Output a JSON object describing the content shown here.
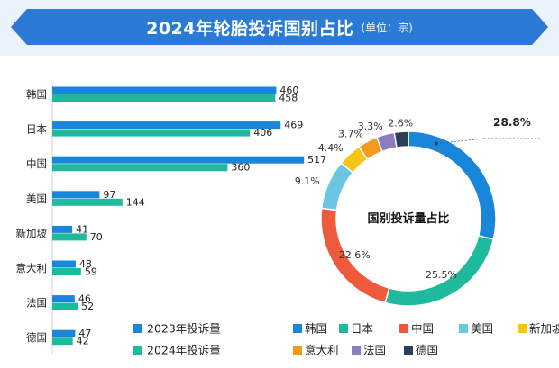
{
  "header": {
    "title": "2024年轮胎投诉国别占比",
    "unit": "(单位：宗)"
  },
  "chart_data": [
    {
      "type": "bar",
      "orientation": "horizontal",
      "categories": [
        "韩国",
        "日本",
        "中国",
        "美国",
        "新加坡",
        "意大利",
        "法国",
        "德国"
      ],
      "series": [
        {
          "name": "2023年投诉量",
          "color": "#1a86d9",
          "values": [
            460,
            469,
            517,
            97,
            41,
            48,
            46,
            47
          ]
        },
        {
          "name": "2024年投诉量",
          "color": "#1fba9e",
          "values": [
            458,
            406,
            360,
            144,
            70,
            59,
            52,
            42
          ]
        }
      ],
      "legend_position": "bottom"
    },
    {
      "type": "pie",
      "donut": true,
      "center_label": "国别投诉量占比",
      "categories": [
        "韩国",
        "日本",
        "中国",
        "美国",
        "新加坡",
        "意大利",
        "法国",
        "德国"
      ],
      "values": [
        28.8,
        25.5,
        22.6,
        9.1,
        4.4,
        3.7,
        3.3,
        2.6
      ],
      "value_labels": [
        "28.8%",
        "25.5%",
        "22.6%",
        "9.1%",
        "4.4%",
        "3.7%",
        "3.3%",
        "2.6%"
      ],
      "colors": [
        "#1a86d9",
        "#1fba9e",
        "#ef5a3c",
        "#6cc6e3",
        "#f5c518",
        "#f39a1e",
        "#8e7cc3",
        "#2d3e5a"
      ],
      "legend_position": "bottom"
    }
  ]
}
